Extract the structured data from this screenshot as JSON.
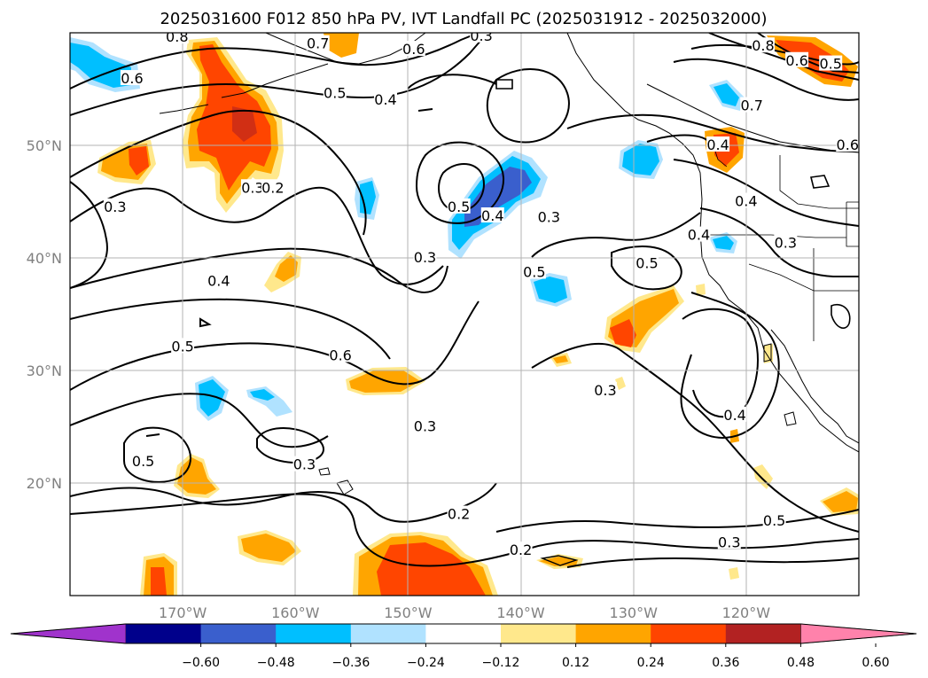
{
  "title": "2025031600 F012 850 hPa PV, IVT Landfall PC (2025031912 - 2025032000)",
  "map": {
    "lon_range": [
      -180,
      -110
    ],
    "lat_range": [
      10,
      60
    ],
    "lon_ticks": [
      {
        "lon": -170,
        "label": "170°W"
      },
      {
        "lon": -160,
        "label": "160°W"
      },
      {
        "lon": -150,
        "label": "150°W"
      },
      {
        "lon": -140,
        "label": "140°W"
      },
      {
        "lon": -130,
        "label": "130°W"
      },
      {
        "lon": -120,
        "label": "120°W"
      }
    ],
    "lat_ticks": [
      {
        "lat": 50,
        "label": "50°N"
      },
      {
        "lat": 40,
        "label": "40°N"
      },
      {
        "lat": 30,
        "label": "30°N"
      },
      {
        "lat": 20,
        "label": "20°N"
      }
    ],
    "grid": true
  },
  "colorbar": {
    "colors": [
      "#a033cc",
      "#00008b",
      "#3a5fcd",
      "#00bfff",
      "#b0e2ff",
      "#ffffff",
      "#ffe88c",
      "#ffa500",
      "#ff4500",
      "#b22222",
      "#ff82ab"
    ],
    "tick_labels": [
      "−0.60",
      "−0.48",
      "−0.36",
      "−0.24",
      "−0.12",
      "0.12",
      "0.24",
      "0.36",
      "0.48",
      "0.60"
    ],
    "extend": "both"
  },
  "contour_labels": [
    {
      "text": "0.8",
      "lon": -170.5,
      "lat": 59.6
    },
    {
      "text": "0.7",
      "lon": -158.0,
      "lat": 59.0
    },
    {
      "text": "0.6",
      "lon": -149.5,
      "lat": 58.5
    },
    {
      "text": "0.3",
      "lon": -143.5,
      "lat": 59.7
    },
    {
      "text": "0.8",
      "lon": -118.5,
      "lat": 58.8
    },
    {
      "text": "0.6",
      "lon": -115.5,
      "lat": 57.5
    },
    {
      "text": "0.5",
      "lon": -112.5,
      "lat": 57.2
    },
    {
      "text": "0.6",
      "lon": -174.5,
      "lat": 55.9
    },
    {
      "text": "0.5",
      "lon": -156.5,
      "lat": 54.6
    },
    {
      "text": "0.4",
      "lon": -152.0,
      "lat": 54.0
    },
    {
      "text": "0.7",
      "lon": -119.5,
      "lat": 53.5
    },
    {
      "text": "0.4",
      "lon": -122.5,
      "lat": 50.0
    },
    {
      "text": "0.6",
      "lon": -111.0,
      "lat": 50.0
    },
    {
      "text": "0.3",
      "lon": -163.8,
      "lat": 46.2
    },
    {
      "text": "0.2",
      "lon": -162.0,
      "lat": 46.2
    },
    {
      "text": "0.3",
      "lon": -176.0,
      "lat": 44.5
    },
    {
      "text": "0.5",
      "lon": -145.5,
      "lat": 44.5
    },
    {
      "text": "0.4",
      "lon": -142.5,
      "lat": 43.7
    },
    {
      "text": "0.3",
      "lon": -137.5,
      "lat": 43.6
    },
    {
      "text": "0.4",
      "lon": -120.0,
      "lat": 45.0
    },
    {
      "text": "0.4",
      "lon": -124.2,
      "lat": 42.0
    },
    {
      "text": "0.3",
      "lon": -116.5,
      "lat": 41.3
    },
    {
      "text": "0.3",
      "lon": -148.5,
      "lat": 40.0
    },
    {
      "text": "0.5",
      "lon": -138.8,
      "lat": 38.7
    },
    {
      "text": "0.5",
      "lon": -128.8,
      "lat": 39.5
    },
    {
      "text": "0.4",
      "lon": -166.8,
      "lat": 37.9
    },
    {
      "text": "0.5",
      "lon": -170.0,
      "lat": 32.1
    },
    {
      "text": "0.6",
      "lon": -156.0,
      "lat": 31.3
    },
    {
      "text": "0.3",
      "lon": -132.5,
      "lat": 28.2
    },
    {
      "text": "0.4",
      "lon": -121.0,
      "lat": 26.0
    },
    {
      "text": "0.3",
      "lon": -148.5,
      "lat": 25.0
    },
    {
      "text": "0.5",
      "lon": -173.5,
      "lat": 21.9
    },
    {
      "text": "0.3",
      "lon": -159.2,
      "lat": 21.6
    },
    {
      "text": "0.2",
      "lon": -145.5,
      "lat": 17.2
    },
    {
      "text": "0.2",
      "lon": -140.0,
      "lat": 14.0
    },
    {
      "text": "0.3",
      "lon": -121.5,
      "lat": 14.7
    },
    {
      "text": "0.5",
      "lon": -117.5,
      "lat": 16.6
    }
  ]
}
